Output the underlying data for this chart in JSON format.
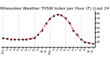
{
  "title": "Milwaukee Weather THSW Index per Hour (F) (Last 24 Hours)",
  "y_values": [
    28,
    27,
    26,
    26,
    25,
    25,
    26,
    27,
    29,
    35,
    45,
    58,
    68,
    75,
    78,
    76,
    70,
    60,
    45,
    35,
    25,
    20,
    18,
    17
  ],
  "ylim": [
    10,
    85
  ],
  "yticks": [
    20,
    30,
    40,
    50,
    60,
    70,
    80
  ],
  "ytick_labels": [
    "20",
    "30",
    "40",
    "50",
    "60",
    "70",
    "80"
  ],
  "line_color": "#dd0000",
  "marker_color": "#000000",
  "background_color": "#ffffff",
  "grid_color": "#999999",
  "title_color": "#000000",
  "title_fontsize": 4.2,
  "tick_fontsize": 3.2,
  "num_points": 24,
  "vgrid_positions": [
    0,
    4,
    8,
    12,
    16,
    20
  ],
  "hour_labels": [
    "12a",
    "1",
    "2",
    "3",
    "4",
    "5",
    "6",
    "7",
    "8",
    "9",
    "10",
    "11",
    "12p",
    "1",
    "2",
    "3",
    "4",
    "5",
    "6",
    "7",
    "8",
    "9",
    "10",
    "11"
  ]
}
